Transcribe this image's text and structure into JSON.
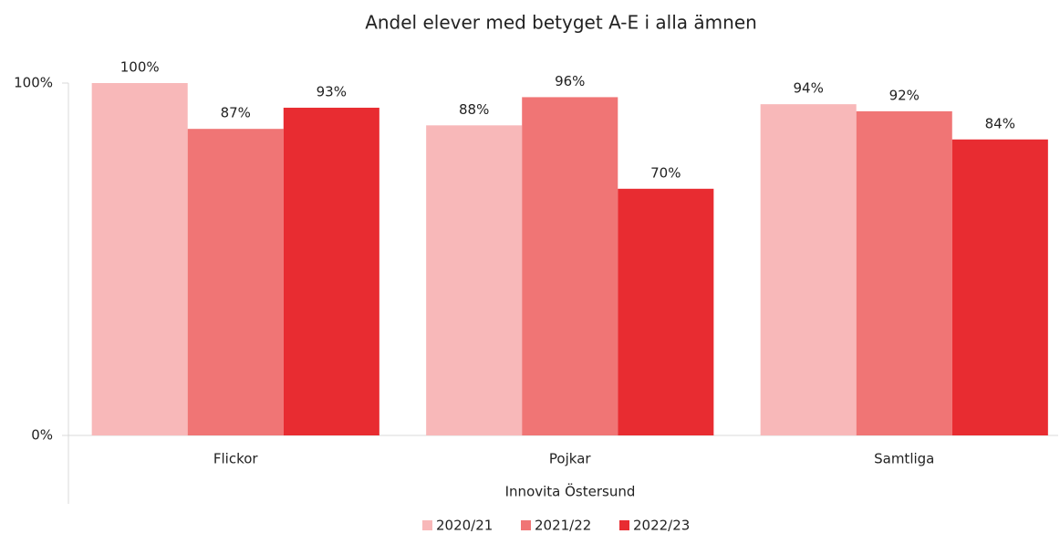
{
  "chart_data": {
    "type": "bar",
    "title": "Andel elever med betyget A-E i alla ämnen",
    "x_label": "Innovita Östersund",
    "categories": [
      "Flickor",
      "Pojkar",
      "Samtliga"
    ],
    "series": [
      {
        "name": "2020/21",
        "color": "#f8b8b9",
        "values": [
          100,
          88,
          94
        ],
        "value_labels": [
          "100%",
          "88%",
          "94%"
        ]
      },
      {
        "name": "2021/22",
        "color": "#f07575",
        "values": [
          87,
          96,
          92
        ],
        "value_labels": [
          "87%",
          "96%",
          "92%"
        ]
      },
      {
        "name": "2022/23",
        "color": "#e82c31",
        "values": [
          93,
          70,
          84
        ],
        "value_labels": [
          "93%",
          "70%",
          "84%"
        ]
      }
    ],
    "ylim": [
      0,
      100
    ],
    "yticks": [
      {
        "value": 0,
        "label": "0%"
      },
      {
        "value": 100,
        "label": "100%"
      }
    ],
    "legend": "bottom"
  }
}
